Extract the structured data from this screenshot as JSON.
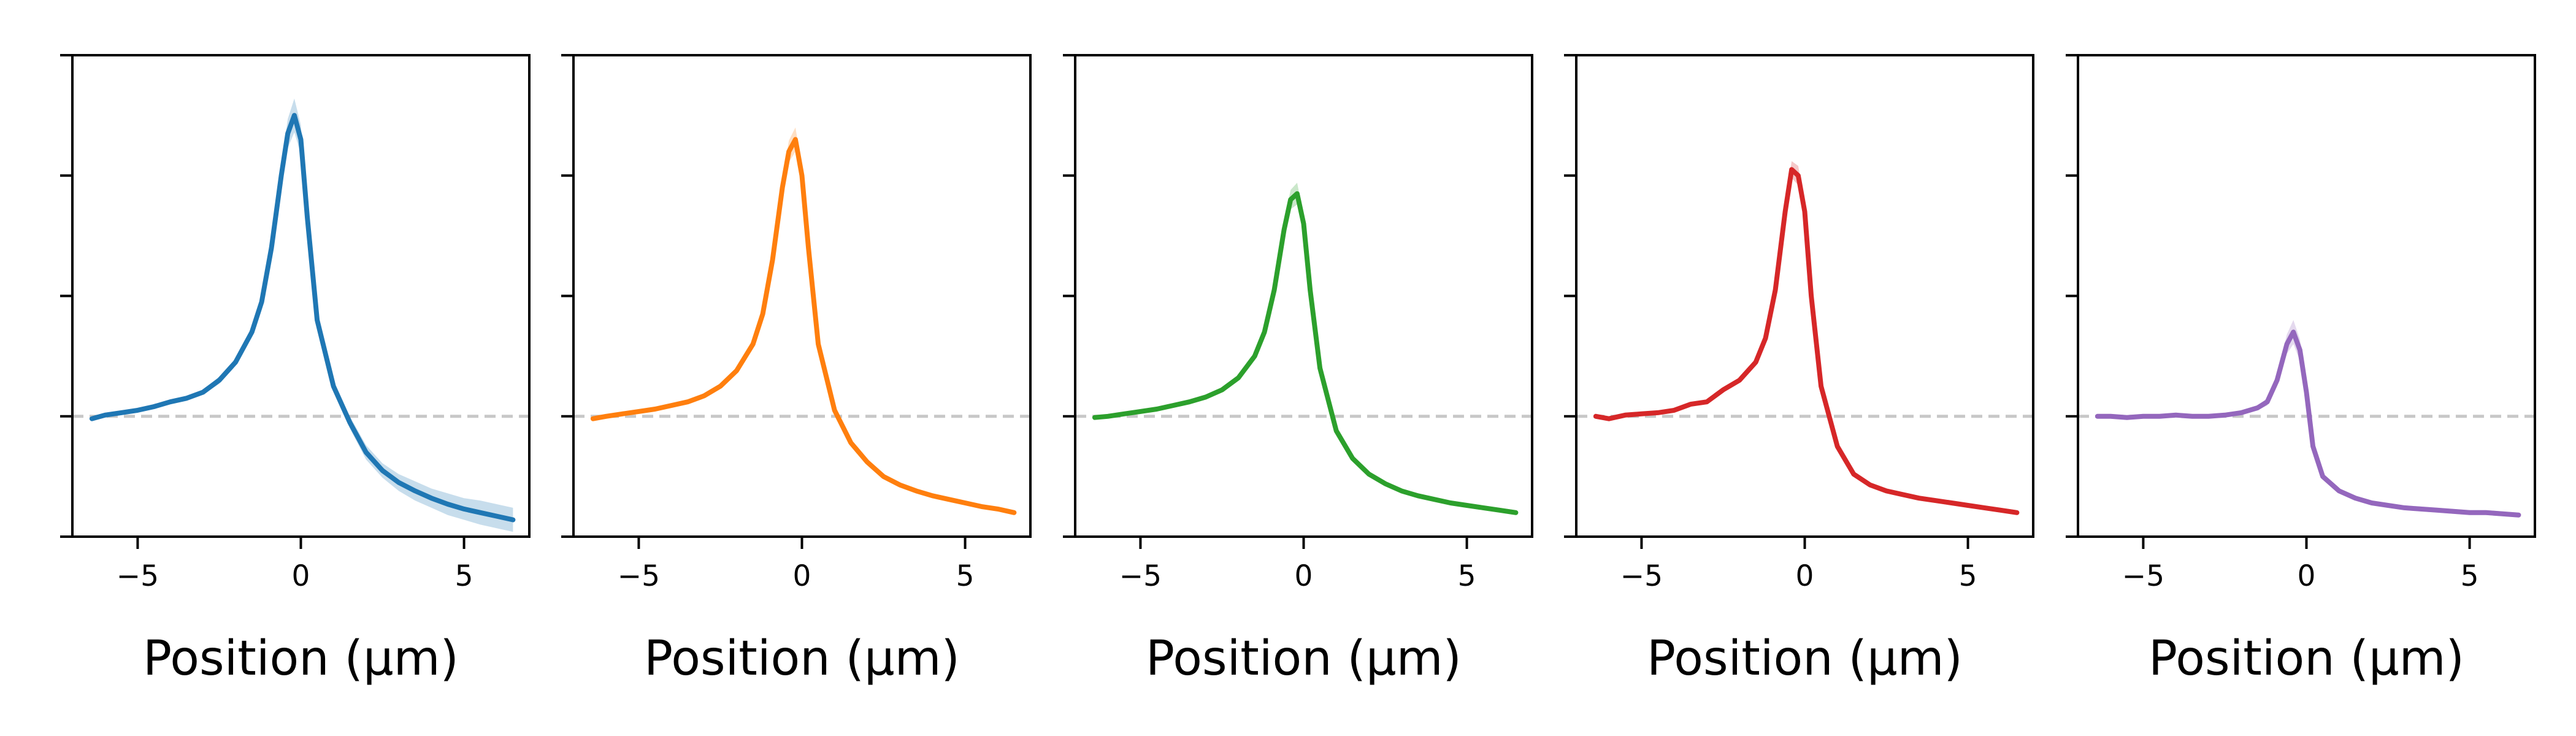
{
  "chart_data": [
    {
      "type": "line",
      "xlabel": "Position (µm)",
      "ylabel": "",
      "xlim": [
        -7,
        7
      ],
      "ylim": [
        -1,
        3
      ],
      "xticks": [
        -5,
        0,
        5
      ],
      "xtick_labels": [
        "−5",
        "0",
        "5"
      ],
      "yticks": [
        -1,
        0,
        1,
        2,
        3
      ],
      "ytick_labels": [],
      "reference_line": {
        "y": 0,
        "style": "dashed",
        "color": "#c8c8c8"
      },
      "grid": false,
      "color": "#1f77b4",
      "band_opacity": 0.25,
      "series": [
        {
          "x": [
            -6.4,
            -6,
            -5.5,
            -5,
            -4.5,
            -4,
            -3.5,
            -3,
            -2.5,
            -2,
            -1.5,
            -1.2,
            -0.9,
            -0.6,
            -0.4,
            -0.2,
            0,
            0.2,
            0.5,
            1,
            1.5,
            2,
            2.5,
            3,
            3.5,
            4,
            4.5,
            5,
            5.5,
            6,
            6.5
          ],
          "y": [
            -0.02,
            0.01,
            0.03,
            0.05,
            0.08,
            0.12,
            0.15,
            0.2,
            0.3,
            0.45,
            0.7,
            0.95,
            1.4,
            2.0,
            2.35,
            2.5,
            2.3,
            1.65,
            0.8,
            0.25,
            -0.05,
            -0.3,
            -0.45,
            -0.55,
            -0.62,
            -0.68,
            -0.73,
            -0.77,
            -0.8,
            -0.83,
            -0.86
          ],
          "err": [
            0.02,
            0.02,
            0.02,
            0.02,
            0.02,
            0.02,
            0.02,
            0.02,
            0.03,
            0.03,
            0.04,
            0.05,
            0.07,
            0.09,
            0.12,
            0.14,
            0.12,
            0.08,
            0.05,
            0.04,
            0.05,
            0.06,
            0.06,
            0.07,
            0.08,
            0.08,
            0.09,
            0.09,
            0.1,
            0.1,
            0.1
          ]
        }
      ]
    },
    {
      "type": "line",
      "xlabel": "Position (µm)",
      "ylabel": "",
      "xlim": [
        -7,
        7
      ],
      "ylim": [
        -1,
        3
      ],
      "xticks": [
        -5,
        0,
        5
      ],
      "xtick_labels": [
        "−5",
        "0",
        "5"
      ],
      "yticks": [
        -1,
        0,
        1,
        2,
        3
      ],
      "ytick_labels": [],
      "reference_line": {
        "y": 0,
        "style": "dashed",
        "color": "#c8c8c8"
      },
      "grid": false,
      "color": "#ff7f0e",
      "band_opacity": 0.25,
      "series": [
        {
          "x": [
            -6.4,
            -6,
            -5.5,
            -5,
            -4.5,
            -4,
            -3.5,
            -3,
            -2.5,
            -2,
            -1.5,
            -1.2,
            -0.9,
            -0.6,
            -0.4,
            -0.2,
            0,
            0.2,
            0.5,
            1,
            1.5,
            2,
            2.5,
            3,
            3.5,
            4,
            4.5,
            5,
            5.5,
            6,
            6.5
          ],
          "y": [
            -0.02,
            0.0,
            0.02,
            0.04,
            0.06,
            0.09,
            0.12,
            0.17,
            0.25,
            0.38,
            0.6,
            0.85,
            1.3,
            1.9,
            2.2,
            2.3,
            2.0,
            1.4,
            0.6,
            0.05,
            -0.22,
            -0.38,
            -0.5,
            -0.57,
            -0.62,
            -0.66,
            -0.69,
            -0.72,
            -0.75,
            -0.77,
            -0.8
          ],
          "err": [
            0.01,
            0.01,
            0.01,
            0.01,
            0.01,
            0.01,
            0.01,
            0.02,
            0.02,
            0.02,
            0.03,
            0.04,
            0.05,
            0.07,
            0.09,
            0.1,
            0.08,
            0.06,
            0.04,
            0.02,
            0.02,
            0.02,
            0.02,
            0.02,
            0.02,
            0.02,
            0.02,
            0.02,
            0.02,
            0.02,
            0.02
          ]
        }
      ]
    },
    {
      "type": "line",
      "xlabel": "Position (µm)",
      "ylabel": "",
      "xlim": [
        -7,
        7
      ],
      "ylim": [
        -1,
        3
      ],
      "xticks": [
        -5,
        0,
        5
      ],
      "xtick_labels": [
        "−5",
        "0",
        "5"
      ],
      "yticks": [
        -1,
        0,
        1,
        2,
        3
      ],
      "ytick_labels": [],
      "reference_line": {
        "y": 0,
        "style": "dashed",
        "color": "#c8c8c8"
      },
      "grid": false,
      "color": "#2ca02c",
      "band_opacity": 0.25,
      "series": [
        {
          "x": [
            -6.4,
            -6,
            -5.5,
            -5,
            -4.5,
            -4,
            -3.5,
            -3,
            -2.5,
            -2,
            -1.5,
            -1.2,
            -0.9,
            -0.6,
            -0.4,
            -0.2,
            0,
            0.2,
            0.5,
            1,
            1.5,
            2,
            2.5,
            3,
            3.5,
            4,
            4.5,
            5,
            5.5,
            6,
            6.5
          ],
          "y": [
            -0.01,
            0.0,
            0.02,
            0.04,
            0.06,
            0.09,
            0.12,
            0.16,
            0.22,
            0.32,
            0.5,
            0.7,
            1.05,
            1.55,
            1.8,
            1.85,
            1.6,
            1.05,
            0.4,
            -0.12,
            -0.35,
            -0.48,
            -0.56,
            -0.62,
            -0.66,
            -0.69,
            -0.72,
            -0.74,
            -0.76,
            -0.78,
            -0.8
          ],
          "err": [
            0.01,
            0.01,
            0.01,
            0.01,
            0.01,
            0.01,
            0.01,
            0.02,
            0.02,
            0.02,
            0.03,
            0.04,
            0.05,
            0.06,
            0.08,
            0.09,
            0.07,
            0.05,
            0.03,
            0.02,
            0.02,
            0.02,
            0.02,
            0.02,
            0.02,
            0.02,
            0.02,
            0.02,
            0.02,
            0.02,
            0.02
          ]
        }
      ]
    },
    {
      "type": "line",
      "xlabel": "Position (µm)",
      "ylabel": "",
      "xlim": [
        -7,
        7
      ],
      "ylim": [
        -1,
        3
      ],
      "xticks": [
        -5,
        0,
        5
      ],
      "xtick_labels": [
        "−5",
        "0",
        "5"
      ],
      "yticks": [
        -1,
        0,
        1,
        2,
        3
      ],
      "ytick_labels": [],
      "reference_line": {
        "y": 0,
        "style": "dashed",
        "color": "#c8c8c8"
      },
      "grid": false,
      "color": "#d62728",
      "band_opacity": 0.25,
      "series": [
        {
          "x": [
            -6.4,
            -6,
            -5.5,
            -5,
            -4.5,
            -4,
            -3.5,
            -3,
            -2.5,
            -2,
            -1.5,
            -1.2,
            -0.9,
            -0.6,
            -0.4,
            -0.2,
            0,
            0.2,
            0.5,
            1,
            1.5,
            2,
            2.5,
            3,
            3.5,
            4,
            4.5,
            5,
            5.5,
            6,
            6.5
          ],
          "y": [
            0.0,
            -0.02,
            0.01,
            0.02,
            0.03,
            0.05,
            0.1,
            0.12,
            0.22,
            0.3,
            0.45,
            0.65,
            1.05,
            1.7,
            2.05,
            2.0,
            1.7,
            1.0,
            0.25,
            -0.25,
            -0.48,
            -0.57,
            -0.62,
            -0.65,
            -0.68,
            -0.7,
            -0.72,
            -0.74,
            -0.76,
            -0.78,
            -0.8
          ],
          "err": [
            0.01,
            0.01,
            0.01,
            0.01,
            0.01,
            0.01,
            0.01,
            0.02,
            0.02,
            0.02,
            0.03,
            0.04,
            0.05,
            0.06,
            0.07,
            0.08,
            0.07,
            0.05,
            0.03,
            0.02,
            0.02,
            0.02,
            0.02,
            0.02,
            0.02,
            0.02,
            0.02,
            0.02,
            0.02,
            0.02,
            0.02
          ]
        }
      ]
    },
    {
      "type": "line",
      "xlabel": "Position (µm)",
      "ylabel": "",
      "xlim": [
        -7,
        7
      ],
      "ylim": [
        -1,
        3
      ],
      "xticks": [
        -5,
        0,
        5
      ],
      "xtick_labels": [
        "−5",
        "0",
        "5"
      ],
      "yticks": [
        -1,
        0,
        1,
        2,
        3
      ],
      "ytick_labels": [],
      "reference_line": {
        "y": 0,
        "style": "dashed",
        "color": "#c8c8c8"
      },
      "grid": false,
      "color": "#9467bd",
      "band_opacity": 0.25,
      "series": [
        {
          "x": [
            -6.4,
            -6,
            -5.5,
            -5,
            -4.5,
            -4,
            -3.5,
            -3,
            -2.5,
            -2,
            -1.5,
            -1.2,
            -0.9,
            -0.6,
            -0.4,
            -0.2,
            0,
            0.2,
            0.5,
            1,
            1.5,
            2,
            2.5,
            3,
            3.5,
            4,
            4.5,
            5,
            5.5,
            6,
            6.5
          ],
          "y": [
            0.0,
            0.0,
            -0.01,
            0.0,
            0.0,
            0.01,
            0.0,
            0.0,
            0.01,
            0.03,
            0.07,
            0.12,
            0.3,
            0.6,
            0.7,
            0.55,
            0.2,
            -0.25,
            -0.5,
            -0.62,
            -0.68,
            -0.72,
            -0.74,
            -0.76,
            -0.77,
            -0.78,
            -0.79,
            -0.8,
            -0.8,
            -0.81,
            -0.82
          ],
          "err": [
            0.01,
            0.01,
            0.01,
            0.01,
            0.01,
            0.01,
            0.01,
            0.01,
            0.01,
            0.02,
            0.02,
            0.03,
            0.05,
            0.08,
            0.1,
            0.09,
            0.06,
            0.03,
            0.02,
            0.02,
            0.02,
            0.02,
            0.02,
            0.02,
            0.02,
            0.02,
            0.02,
            0.02,
            0.02,
            0.02,
            0.02
          ]
        }
      ]
    }
  ]
}
